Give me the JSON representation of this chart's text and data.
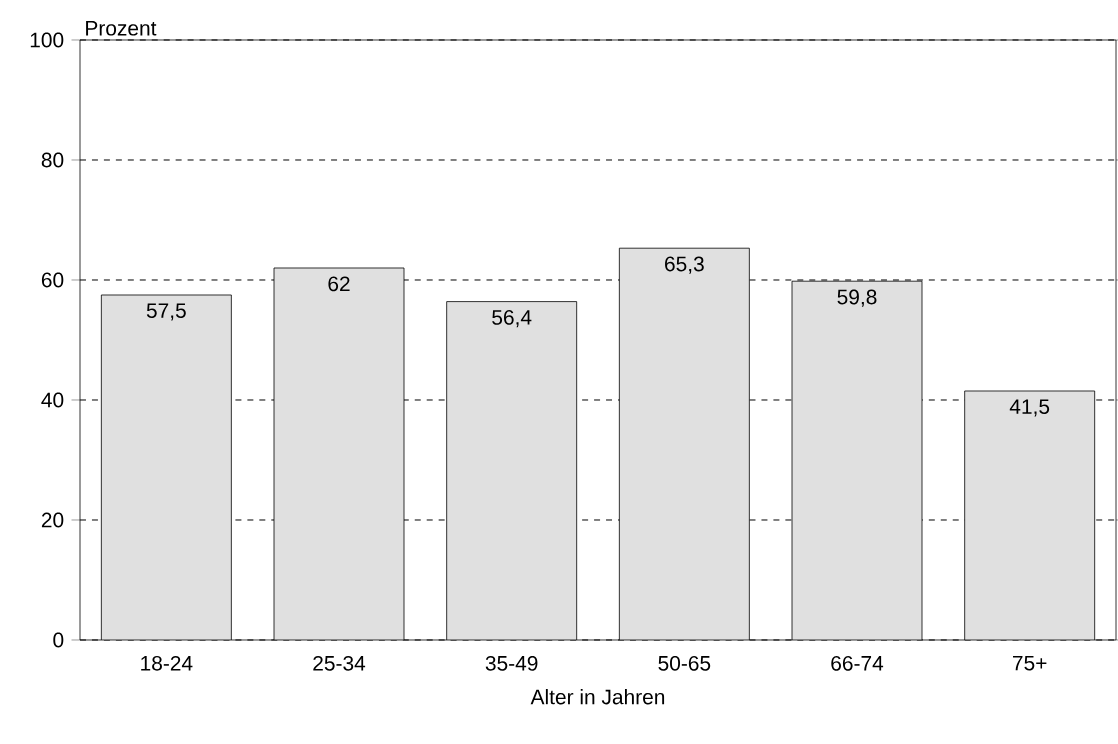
{
  "chart_data": {
    "type": "bar",
    "xlabel": "Alter in Jahren",
    "ylabel": "Prozent",
    "categories": [
      "18-24",
      "25-34",
      "35-49",
      "50-65",
      "66-74",
      "75+"
    ],
    "values": [
      57.5,
      62,
      56.4,
      65.3,
      59.8,
      41.5
    ],
    "value_labels": [
      "57,5",
      "62",
      "56,4",
      "65,3",
      "59,8",
      "41,5"
    ],
    "color": "#e0e0e0",
    "ylim": [
      0,
      100
    ],
    "yticks": [
      0,
      20,
      40,
      60,
      80,
      100
    ],
    "grid": "y"
  }
}
